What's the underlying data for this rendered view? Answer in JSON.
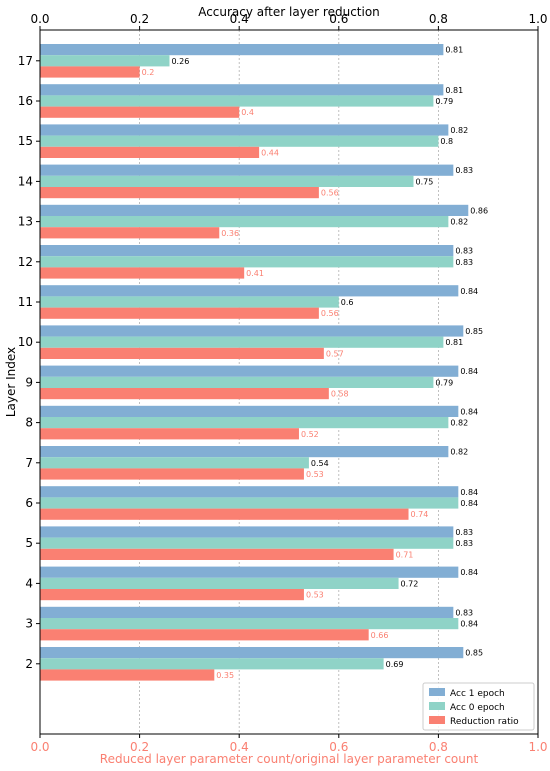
{
  "chart_data": {
    "type": "bar",
    "orientation": "horizontal",
    "top_axis_title": "Accuracy after layer reduction",
    "bottom_axis_title": "Reduced layer parameter count/original layer parameter count",
    "ylabel": "Layer Index",
    "xlim": [
      0.0,
      1.0
    ],
    "x_ticks": [
      "0.0",
      "0.2",
      "0.4",
      "0.6",
      "0.8",
      "1.0"
    ],
    "categories": [
      "17",
      "16",
      "15",
      "14",
      "13",
      "12",
      "11",
      "10",
      "9",
      "8",
      "7",
      "6",
      "5",
      "4",
      "3",
      "2"
    ],
    "grid": "vertical dashed",
    "legend_position": "bottom-right",
    "series": [
      {
        "name": "Acc 1 epoch",
        "color": "#82aed4",
        "label_color": "#000000",
        "values": [
          0.81,
          0.81,
          0.82,
          0.83,
          0.86,
          0.83,
          0.84,
          0.85,
          0.84,
          0.84,
          0.82,
          0.84,
          0.83,
          0.84,
          0.83,
          0.85
        ],
        "labels": [
          "0.81",
          "0.81",
          "0.82",
          "0.83",
          "0.86",
          "0.83",
          "0.84",
          "0.85",
          "0.84",
          "0.84",
          "0.82",
          "0.84",
          "0.83",
          "0.84",
          "0.83",
          "0.85"
        ]
      },
      {
        "name": "Acc 0 epoch",
        "color": "#8fd3c7",
        "label_color": "#000000",
        "values": [
          0.26,
          0.79,
          0.8,
          0.75,
          0.82,
          0.83,
          0.6,
          0.81,
          0.79,
          0.82,
          0.54,
          0.84,
          0.83,
          0.72,
          0.84,
          0.69
        ],
        "labels": [
          "0.26",
          "0.79",
          "0.8",
          "0.75",
          "0.82",
          "0.83",
          "0.6",
          "0.81",
          "0.79",
          "0.82",
          "0.54",
          "0.84",
          "0.83",
          "0.72",
          "0.84",
          "0.69"
        ]
      },
      {
        "name": "Reduction ratio",
        "color": "#fa8072",
        "label_color": "#fa8072",
        "values": [
          0.2,
          0.4,
          0.44,
          0.56,
          0.36,
          0.41,
          0.56,
          0.57,
          0.58,
          0.52,
          0.53,
          0.74,
          0.71,
          0.53,
          0.66,
          0.35
        ],
        "labels": [
          "0.2",
          "0.4",
          "0.44",
          "0.56",
          "0.36",
          "0.41",
          "0.56",
          "0.57",
          "0.58",
          "0.52",
          "0.53",
          "0.74",
          "0.71",
          "0.53",
          "0.66",
          "0.35"
        ]
      }
    ],
    "bottom_axis_color": "#fa8072"
  }
}
